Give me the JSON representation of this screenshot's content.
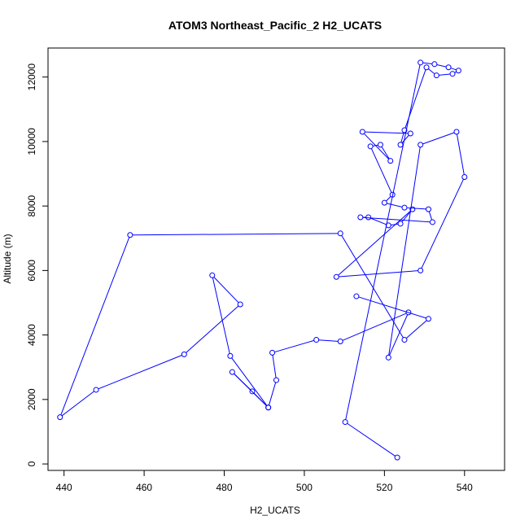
{
  "chart_data": {
    "type": "line",
    "title": "ATOM3 Northeast_Pacific_2 H2_UCATS",
    "xlabel": "H2_UCATS",
    "ylabel": "Altitude (m)",
    "xlim": [
      436,
      550
    ],
    "ylim": [
      -200,
      12900
    ],
    "xticks": [
      440,
      460,
      480,
      500,
      520,
      540
    ],
    "yticks": [
      0,
      2000,
      4000,
      6000,
      8000,
      10000,
      12000
    ],
    "grid": false,
    "legend": "none",
    "line_style": "both",
    "marker": "open-circle",
    "color": "#0000ff",
    "series": [
      {
        "x": [
          523.2,
          510.2,
          529.0,
          532.5,
          536.0,
          538.5,
          537.0,
          533.0,
          530.5,
          525.0,
          524.0,
          526.5,
          514.5,
          521.5,
          519.0,
          516.5,
          522.0,
          520.0,
          525.0,
          531.0,
          532.0,
          514.0,
          516.0,
          521.0,
          524.0,
          527.0,
          508.0,
          529.0,
          540.0,
          538.0,
          529.0,
          521.0,
          526.0,
          509.0,
          503.0,
          492.0,
          493.0,
          491.0,
          482.0,
          487.0,
          491.0,
          481.5,
          477.0,
          484.0,
          470.0,
          448.0,
          439.0,
          456.5,
          509.0,
          525.0,
          531.0,
          513.0
        ],
        "y": [
          200,
          1300,
          12450,
          12400,
          12300,
          12200,
          12100,
          12050,
          12300,
          10350,
          9900,
          10250,
          10300,
          9400,
          9900,
          9850,
          8350,
          8100,
          7950,
          7900,
          7500,
          7650,
          7650,
          7400,
          7450,
          7900,
          5800,
          6000,
          8900,
          10300,
          9900,
          3300,
          4700,
          3800,
          3850,
          3450,
          2600,
          1750,
          2850,
          2250,
          1750,
          3350,
          5850,
          4950,
          3400,
          2300,
          1450,
          7100,
          7150,
          3850,
          4500,
          5200
        ]
      }
    ]
  }
}
